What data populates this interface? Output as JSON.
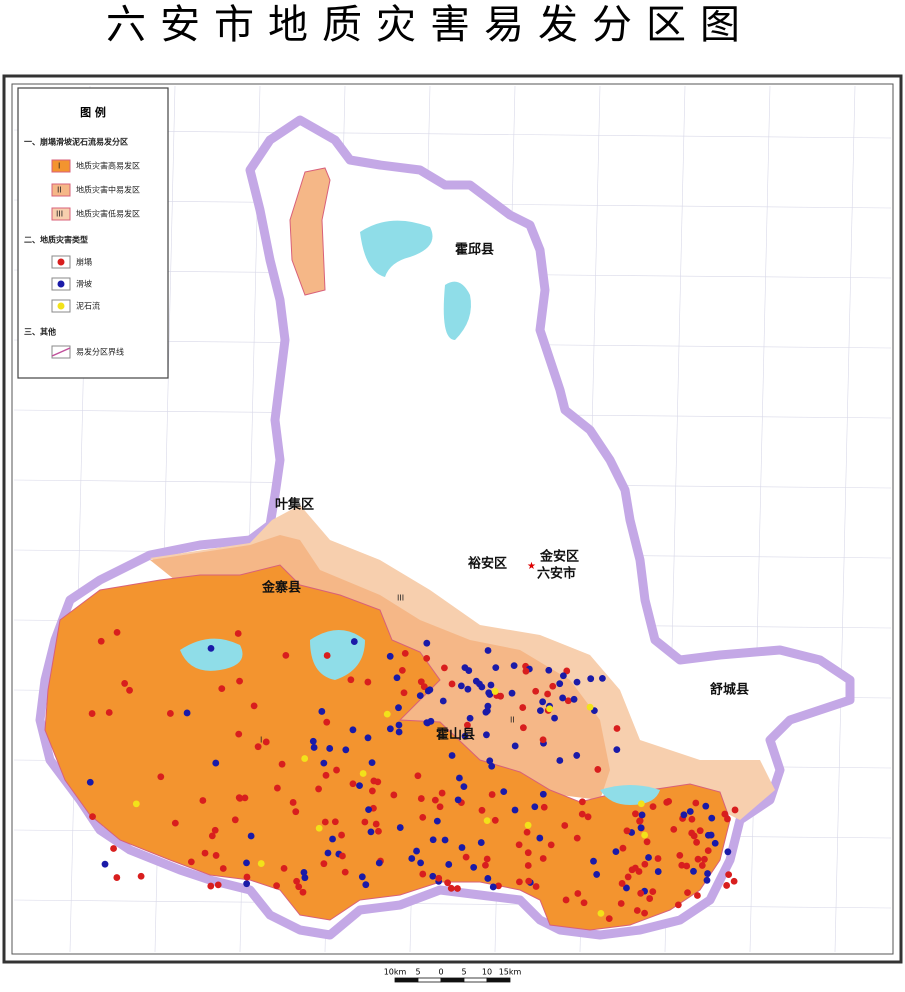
{
  "title": "六安市地质灾害易发分区图",
  "legend": {
    "title": "图 例",
    "section1": "一、崩塌滑坡泥石流易发分区",
    "zones": [
      {
        "symbol": "I",
        "label": "地质灾害高易发区"
      },
      {
        "symbol": "II",
        "label": "地质灾害中易发区"
      },
      {
        "symbol": "III",
        "label": "地质灾害低易发区"
      }
    ],
    "section2": "二、地质灾害类型",
    "types": [
      "崩塌",
      "滑坡",
      "泥石流"
    ],
    "section3": "三、其他",
    "other": "易发分区界线"
  },
  "map": {
    "labels": [
      "霍邱县",
      "叶集区",
      "金寨县",
      "裕安区",
      "金安区",
      "六安市",
      "霍山县",
      "舒城县"
    ]
  },
  "scale_bar": {
    "labels": [
      "10km",
      "5",
      "0",
      "5",
      "10",
      "15km"
    ]
  }
}
